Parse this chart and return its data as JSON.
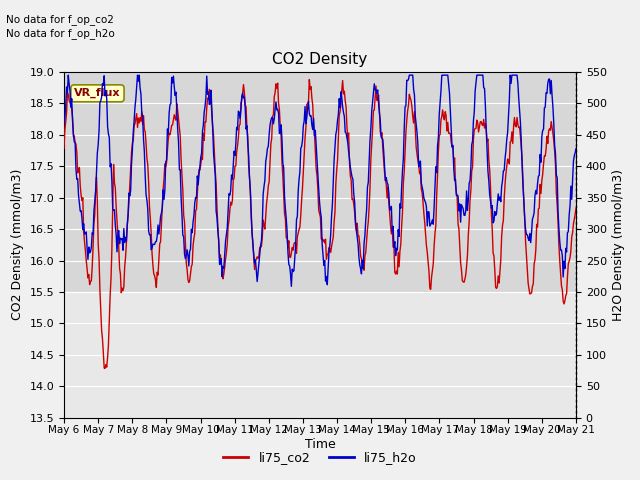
{
  "title": "CO2 Density",
  "xlabel": "Time",
  "ylabel_left": "CO2 Density (mmol/m3)",
  "ylabel_right": "H2O Density (mmol/m3)",
  "annotation_text": "No data for f_op_co2\nNo data for f_op_h2o",
  "vr_flux_label": "VR_flux",
  "ylim_left": [
    13.5,
    19.0
  ],
  "ylim_right": [
    0,
    550
  ],
  "yticks_left": [
    13.5,
    14.0,
    14.5,
    15.0,
    15.5,
    16.0,
    16.5,
    17.0,
    17.5,
    18.0,
    18.5,
    19.0
  ],
  "yticks_right": [
    0,
    50,
    100,
    150,
    200,
    250,
    300,
    350,
    400,
    450,
    500,
    550
  ],
  "xtick_labels": [
    "May 6",
    "May 7",
    "May 8",
    "May 9",
    "May 10",
    "May 11",
    "May 12",
    "May 13",
    "May 14",
    "May 15",
    "May 16",
    "May 17",
    "May 18",
    "May 19",
    "May 20",
    "May 21"
  ],
  "co2_color": "#cc0000",
  "h2o_color": "#0000cc",
  "background_color": "#f0f0f0",
  "plot_bg_upper": "#d8d8d8",
  "plot_bg_lower": "#e8e8e8",
  "legend_entries": [
    "li75_co2",
    "li75_h2o"
  ],
  "line_width": 1.0,
  "num_days": 15,
  "num_points": 600,
  "co2_ylim_shading": [
    15.5,
    19.0
  ],
  "h2o_range_min": 200,
  "h2o_range_max": 540
}
